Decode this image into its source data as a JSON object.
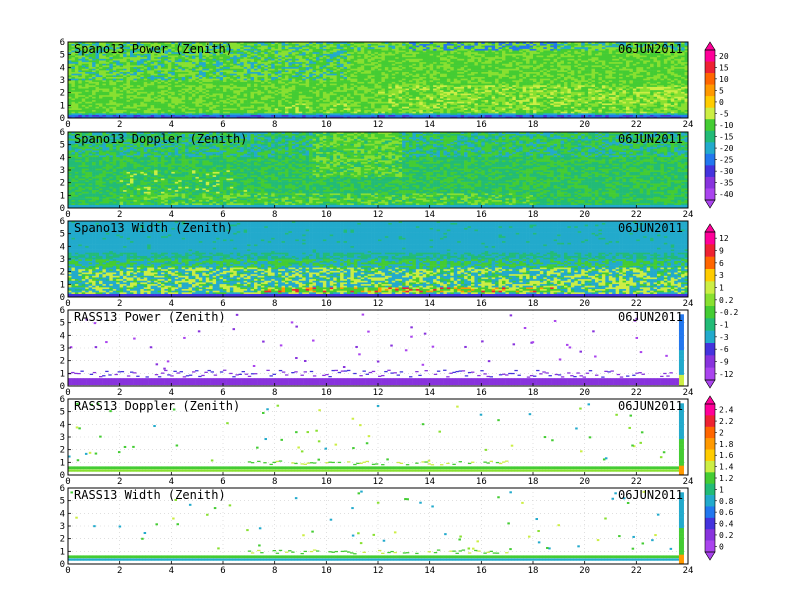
{
  "chart_data": [
    {
      "type": "heatmap",
      "title": "Spano13 Power (Zenith)",
      "date": "06JUN2011",
      "x_ticks": [
        0,
        2,
        4,
        6,
        8,
        10,
        12,
        14,
        16,
        18,
        20,
        22,
        24
      ],
      "y_ticks": [
        0,
        1,
        2,
        3,
        4,
        5,
        6
      ],
      "xlim": [
        0,
        24
      ],
      "ylim": [
        0,
        6
      ],
      "field": "spano_power",
      "colorbar_ticks": [
        "20",
        "15",
        "10",
        "5",
        "0",
        "-5",
        "-10",
        "-15",
        "-20",
        "-25",
        "-30",
        "-35",
        "-40"
      ],
      "colorbar_group": 0
    },
    {
      "type": "heatmap",
      "title": "Spano13 Doppler (Zenith)",
      "date": "06JUN2011",
      "x_ticks": [
        0,
        2,
        4,
        6,
        8,
        10,
        12,
        14,
        16,
        18,
        20,
        22,
        24
      ],
      "y_ticks": [
        0,
        1,
        2,
        3,
        4,
        5,
        6
      ],
      "xlim": [
        0,
        24
      ],
      "ylim": [
        0,
        6
      ],
      "field": "spano_doppler"
    },
    {
      "type": "heatmap",
      "title": "Spano13 Width (Zenith)",
      "date": "06JUN2011",
      "x_ticks": [
        0,
        2,
        4,
        6,
        8,
        10,
        12,
        14,
        16,
        18,
        20,
        22,
        24
      ],
      "y_ticks": [
        0,
        1,
        2,
        3,
        4,
        5,
        6
      ],
      "xlim": [
        0,
        24
      ],
      "ylim": [
        0,
        6
      ],
      "field": "spano_width"
    },
    {
      "type": "heatmap",
      "title": "RASS13 Power (Zenith)",
      "date": "06JUN2011",
      "x_ticks": [
        0,
        2,
        4,
        6,
        8,
        10,
        12,
        14,
        16,
        18,
        20,
        22,
        24
      ],
      "y_ticks": [
        0,
        1,
        2,
        3,
        4,
        5,
        6
      ],
      "xlim": [
        0,
        24
      ],
      "ylim": [
        0,
        6
      ],
      "field": "rass_power",
      "colorbar_ticks": [
        "12",
        "9",
        "6",
        "3",
        "1",
        "0.2",
        "-0.2",
        "-1",
        "-3",
        "-6",
        "-9",
        "-12"
      ],
      "colorbar_group": 1
    },
    {
      "type": "heatmap",
      "title": "RASS13 Doppler (Zenith)",
      "date": "06JUN2011",
      "x_ticks": [
        0,
        2,
        4,
        6,
        8,
        10,
        12,
        14,
        16,
        18,
        20,
        22,
        24
      ],
      "y_ticks": [
        0,
        1,
        2,
        3,
        4,
        5,
        6
      ],
      "xlim": [
        0,
        24
      ],
      "ylim": [
        0,
        6
      ],
      "field": "rass_doppler",
      "colorbar_ticks": [
        "2.4",
        "2.2",
        "2",
        "1.8",
        "1.6",
        "1.4",
        "1.2",
        "1",
        "0.8",
        "0.6",
        "0.4",
        "0.2",
        "0"
      ],
      "colorbar_group": 2
    },
    {
      "type": "heatmap",
      "title": "RASS13 Width (Zenith)",
      "date": "06JUN2011",
      "x_ticks": [
        0,
        2,
        4,
        6,
        8,
        10,
        12,
        14,
        16,
        18,
        20,
        22,
        24
      ],
      "y_ticks": [
        0,
        1,
        2,
        3,
        4,
        5,
        6
      ],
      "xlim": [
        0,
        24
      ],
      "ylim": [
        0,
        6
      ],
      "field": "rass_width"
    }
  ],
  "colormap": [
    "#ff0099",
    "#ee2233",
    "#ff6600",
    "#ff9900",
    "#ffcc00",
    "#ccee44",
    "#88e030",
    "#44cc33",
    "#22bb77",
    "#22aacc",
    "#2277ee",
    "#4433dd",
    "#8833dd",
    "#aa44ee"
  ]
}
